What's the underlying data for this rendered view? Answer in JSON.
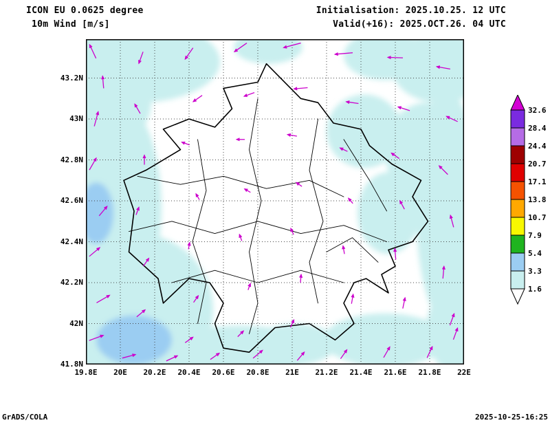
{
  "header": {
    "model_line": "ICON EU 0.0625 degree",
    "field_line": "10m Wind [m/s]",
    "init_line": "Initialisation: 2025.10.25. 12 UTC",
    "valid_line": "Valid(+16): 2025.OCT.26. 04 UTC"
  },
  "footer": {
    "left": "GrADS/COLA",
    "right": "2025-10-25-16:25"
  },
  "chart_data": {
    "type": "heatmap",
    "subtype": "shaded-contour-with-wind-vectors-over-map",
    "title": "ICON EU 0.0625 degree — 10m Wind [m/s]",
    "units": "m/s",
    "region": "Kosovo and surroundings",
    "lon_range": [
      19.8,
      22.0
    ],
    "lat_range": [
      41.8,
      43.39
    ],
    "grid": "dotted, every 0.2 degree",
    "x_tick_labels": [
      "19.8E",
      "20E",
      "20.2E",
      "20.4E",
      "20.6E",
      "20.8E",
      "21E",
      "21.2E",
      "21.4E",
      "21.6E",
      "21.8E",
      "22E"
    ],
    "x_tick_lons": [
      19.8,
      20,
      20.2,
      20.4,
      20.6,
      20.8,
      21,
      21.2,
      21.4,
      21.6,
      21.8,
      22
    ],
    "y_tick_labels": [
      "43.2N",
      "43N",
      "42.8N",
      "42.6N",
      "42.4N",
      "42.2N",
      "42N",
      "41.8N"
    ],
    "y_tick_lats": [
      43.2,
      43,
      42.8,
      42.6,
      42.4,
      42.2,
      42,
      41.8
    ],
    "colorbar": {
      "position": "right",
      "boundary_labels_top_to_bottom": [
        "32.6",
        "28.4",
        "24.4",
        "20.7",
        "17.1",
        "13.8",
        "10.7",
        "7.9",
        "5.4",
        "3.3",
        "1.6"
      ],
      "boundary_values": [
        32.6,
        28.4,
        24.4,
        20.7,
        17.1,
        13.8,
        10.7,
        7.9,
        5.4,
        3.3,
        1.6
      ],
      "above_color": "#d400d4",
      "segment_colors_top_to_bottom": [
        "#7a2be0",
        "#b56ce6",
        "#9e0000",
        "#e00000",
        "#f55200",
        "#ffa800",
        "#f8f800",
        "#1fb41f",
        "#9bcdf2",
        "#c9efef"
      ],
      "below_color": "#ffffff"
    },
    "arrow_color": "#cc00cc",
    "shading": {
      "palette": {
        "c1": "#c9efef",
        "c2": "#9bcdf2"
      },
      "blobs": [
        [
          20.1,
          43.28,
          0.48,
          0.2,
          "c1"
        ],
        [
          19.94,
          43.08,
          0.24,
          0.2,
          "c1"
        ],
        [
          19.96,
          42.57,
          0.28,
          0.54,
          "c1"
        ],
        [
          20.1,
          42.07,
          0.44,
          0.37,
          "c1"
        ],
        [
          20.7,
          41.87,
          0.44,
          0.12,
          "c1"
        ],
        [
          21.02,
          41.9,
          0.24,
          0.1,
          "c1"
        ],
        [
          21.54,
          41.92,
          0.36,
          0.13,
          "c1"
        ],
        [
          21.94,
          41.97,
          0.16,
          0.2,
          "c1"
        ],
        [
          21.9,
          42.57,
          0.18,
          0.57,
          "c1"
        ],
        [
          21.78,
          42.84,
          0.24,
          0.24,
          "c1"
        ],
        [
          21.86,
          43.25,
          0.28,
          0.17,
          "c1"
        ],
        [
          21.54,
          43.31,
          0.24,
          0.12,
          "c1"
        ],
        [
          20.86,
          43.35,
          0.2,
          0.08,
          "c1"
        ],
        [
          21.42,
          42.94,
          0.22,
          0.18,
          "c1"
        ],
        [
          21.56,
          42.54,
          0.18,
          0.2,
          "c1"
        ],
        [
          20.08,
          41.92,
          0.22,
          0.12,
          "c2"
        ],
        [
          19.86,
          42.54,
          0.1,
          0.15,
          "c2"
        ]
      ]
    },
    "map_outline": [
      [
        20.85,
        43.27
      ],
      [
        21.05,
        43.1
      ],
      [
        21.15,
        43.08
      ],
      [
        21.24,
        42.98
      ],
      [
        21.4,
        42.95
      ],
      [
        21.45,
        42.87
      ],
      [
        21.58,
        42.78
      ],
      [
        21.75,
        42.7
      ],
      [
        21.7,
        42.62
      ],
      [
        21.79,
        42.5
      ],
      [
        21.7,
        42.4
      ],
      [
        21.56,
        42.36
      ],
      [
        21.6,
        42.28
      ],
      [
        21.52,
        42.24
      ],
      [
        21.56,
        42.15
      ],
      [
        21.43,
        42.22
      ],
      [
        21.36,
        42.2
      ],
      [
        21.3,
        42.1
      ],
      [
        21.36,
        42.0
      ],
      [
        21.25,
        41.92
      ],
      [
        21.1,
        42.0
      ],
      [
        20.9,
        41.98
      ],
      [
        20.75,
        41.86
      ],
      [
        20.6,
        41.88
      ],
      [
        20.55,
        42.0
      ],
      [
        20.6,
        42.1
      ],
      [
        20.52,
        42.2
      ],
      [
        20.4,
        42.22
      ],
      [
        20.25,
        42.1
      ],
      [
        20.22,
        42.22
      ],
      [
        20.05,
        42.35
      ],
      [
        20.08,
        42.55
      ],
      [
        20.02,
        42.7
      ],
      [
        20.15,
        42.75
      ],
      [
        20.35,
        42.85
      ],
      [
        20.25,
        42.95
      ],
      [
        20.4,
        43.0
      ],
      [
        20.55,
        42.96
      ],
      [
        20.65,
        43.05
      ],
      [
        20.6,
        43.15
      ],
      [
        20.8,
        43.18
      ]
    ],
    "internal_boundaries": [
      [
        [
          20.1,
          42.72
        ],
        [
          20.35,
          42.68
        ],
        [
          20.6,
          42.72
        ],
        [
          20.85,
          42.66
        ],
        [
          21.1,
          42.7
        ],
        [
          21.3,
          42.62
        ]
      ],
      [
        [
          20.05,
          42.45
        ],
        [
          20.3,
          42.5
        ],
        [
          20.55,
          42.44
        ],
        [
          20.8,
          42.5
        ],
        [
          21.05,
          42.44
        ],
        [
          21.3,
          42.48
        ],
        [
          21.55,
          42.4
        ]
      ],
      [
        [
          20.3,
          42.2
        ],
        [
          20.55,
          42.26
        ],
        [
          20.8,
          42.2
        ],
        [
          21.05,
          42.26
        ],
        [
          21.3,
          42.2
        ]
      ],
      [
        [
          20.45,
          42.9
        ],
        [
          20.5,
          42.65
        ],
        [
          20.42,
          42.4
        ],
        [
          20.5,
          42.2
        ],
        [
          20.45,
          42.0
        ]
      ],
      [
        [
          20.8,
          43.1
        ],
        [
          20.75,
          42.85
        ],
        [
          20.82,
          42.6
        ],
        [
          20.75,
          42.35
        ],
        [
          20.8,
          42.1
        ],
        [
          20.75,
          41.95
        ]
      ],
      [
        [
          21.15,
          43.0
        ],
        [
          21.1,
          42.75
        ],
        [
          21.18,
          42.5
        ],
        [
          21.1,
          42.3
        ],
        [
          21.15,
          42.1
        ]
      ],
      [
        [
          21.3,
          42.9
        ],
        [
          21.45,
          42.7
        ],
        [
          21.55,
          42.55
        ]
      ],
      [
        [
          21.2,
          42.35
        ],
        [
          21.35,
          42.42
        ],
        [
          21.5,
          42.3
        ]
      ]
    ],
    "wind_vectors": [
      [
        19.84,
        43.33,
        115,
        22
      ],
      [
        19.9,
        43.18,
        95,
        18
      ],
      [
        19.86,
        43.0,
        75,
        22
      ],
      [
        19.84,
        42.78,
        60,
        20
      ],
      [
        19.9,
        42.55,
        50,
        18
      ],
      [
        19.85,
        42.35,
        40,
        20
      ],
      [
        19.9,
        42.12,
        30,
        22
      ],
      [
        19.86,
        41.93,
        20,
        22
      ],
      [
        20.05,
        41.84,
        15,
        20
      ],
      [
        20.3,
        41.83,
        25,
        18
      ],
      [
        20.55,
        41.84,
        35,
        16
      ],
      [
        20.8,
        41.85,
        40,
        18
      ],
      [
        21.05,
        41.84,
        50,
        16
      ],
      [
        21.3,
        41.85,
        55,
        16
      ],
      [
        21.55,
        41.86,
        60,
        18
      ],
      [
        21.8,
        41.86,
        65,
        18
      ],
      [
        21.95,
        41.95,
        70,
        18
      ],
      [
        20.12,
        43.3,
        250,
        18
      ],
      [
        20.1,
        43.05,
        120,
        16
      ],
      [
        20.14,
        42.8,
        90,
        14
      ],
      [
        20.1,
        42.55,
        70,
        12
      ],
      [
        20.15,
        42.3,
        55,
        14
      ],
      [
        20.12,
        42.05,
        40,
        16
      ],
      [
        20.4,
        43.32,
        235,
        20
      ],
      [
        20.45,
        43.1,
        215,
        16
      ],
      [
        20.38,
        42.88,
        160,
        12
      ],
      [
        20.45,
        42.62,
        120,
        10
      ],
      [
        20.4,
        42.38,
        80,
        10
      ],
      [
        20.44,
        42.12,
        55,
        12
      ],
      [
        20.4,
        41.92,
        35,
        14
      ],
      [
        20.7,
        43.35,
        215,
        22
      ],
      [
        20.75,
        43.12,
        200,
        16
      ],
      [
        20.7,
        42.9,
        180,
        12
      ],
      [
        20.74,
        42.65,
        150,
        10
      ],
      [
        20.7,
        42.42,
        110,
        10
      ],
      [
        20.75,
        42.18,
        70,
        10
      ],
      [
        20.7,
        41.95,
        45,
        12
      ],
      [
        21.0,
        43.36,
        195,
        26
      ],
      [
        21.05,
        43.15,
        185,
        20
      ],
      [
        21.0,
        42.92,
        170,
        14
      ],
      [
        21.04,
        42.68,
        145,
        10
      ],
      [
        21.0,
        42.45,
        115,
        10
      ],
      [
        21.05,
        42.22,
        85,
        12
      ],
      [
        21.0,
        42.0,
        65,
        12
      ],
      [
        21.3,
        43.32,
        185,
        26
      ],
      [
        21.35,
        43.08,
        172,
        18
      ],
      [
        21.3,
        42.85,
        155,
        12
      ],
      [
        21.34,
        42.6,
        130,
        10
      ],
      [
        21.3,
        42.36,
        100,
        12
      ],
      [
        21.35,
        42.12,
        80,
        14
      ],
      [
        21.6,
        43.3,
        178,
        22
      ],
      [
        21.65,
        43.05,
        162,
        18
      ],
      [
        21.6,
        42.82,
        145,
        14
      ],
      [
        21.64,
        42.58,
        118,
        14
      ],
      [
        21.6,
        42.34,
        95,
        16
      ],
      [
        21.65,
        42.1,
        78,
        16
      ],
      [
        21.88,
        43.25,
        170,
        20
      ],
      [
        21.93,
        43.0,
        155,
        18
      ],
      [
        21.88,
        42.75,
        135,
        18
      ],
      [
        21.93,
        42.5,
        105,
        18
      ],
      [
        21.88,
        42.25,
        85,
        18
      ],
      [
        21.93,
        42.02,
        70,
        18
      ]
    ]
  }
}
